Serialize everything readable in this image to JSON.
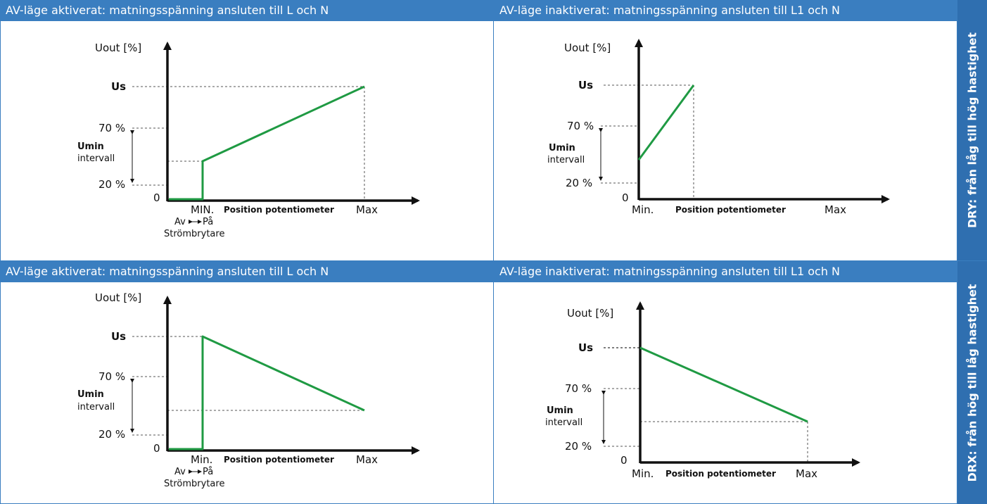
{
  "colors": {
    "header_bg": "#3a7ec0",
    "side_bg": "#2f6fb0",
    "border": "#3a7ec0",
    "curve": "#1f9a43"
  },
  "side_labels": [
    "DRY: från låg till hög hastighet",
    "DRX: från hög till låg hastighet"
  ],
  "panels": [
    {
      "header": "AV-läge aktiverat: matningsspänning ansluten till L och N",
      "y_axis_label": "Uout [%]",
      "us_label": "Us",
      "p70_label": "70 %",
      "p20_label": "20 %",
      "umin_label": "Umin",
      "umin_sub": "intervall",
      "zero_label": "0",
      "x_min_label": "MIN.",
      "x_pos_label": "Position potentiometer",
      "x_max_label": "Max",
      "switch_off": "Av",
      "switch_on": "På",
      "switch_label": "Strömbrytare"
    },
    {
      "header": "AV-läge inaktiverat: matningsspänning ansluten till L1 och N",
      "y_axis_label": "Uout [%]",
      "us_label": "Us",
      "p70_label": "70 %",
      "p20_label": "20 %",
      "umin_label": "Umin",
      "umin_sub": "intervall",
      "zero_label": "0",
      "x_min_label": "Min.",
      "x_pos_label": "Position potentiometer",
      "x_max_label": "Max"
    },
    {
      "header": "AV-läge aktiverat: matningsspänning ansluten till L och N",
      "y_axis_label": "Uout [%]",
      "us_label": "Us",
      "p70_label": "70 %",
      "p20_label": "20 %",
      "umin_label": "Umin",
      "umin_sub": "intervall",
      "zero_label": "0",
      "x_min_label": "Min.",
      "x_pos_label": "Position potentiometer",
      "x_max_label": "Max",
      "switch_off": "Av",
      "switch_on": "På",
      "switch_label": "Strömbrytare"
    },
    {
      "header": "AV-läge inaktiverat: matningsspänning ansluten till L1 och N",
      "y_axis_label": "Uout [%]",
      "us_label": "Us",
      "p70_label": "70 %",
      "p20_label": "20 %",
      "umin_label": "Umin",
      "umin_sub": "intervall",
      "zero_label": "0",
      "x_min_label": "Min.",
      "x_pos_label": "Position potentiometer",
      "x_max_label": "Max"
    }
  ]
}
